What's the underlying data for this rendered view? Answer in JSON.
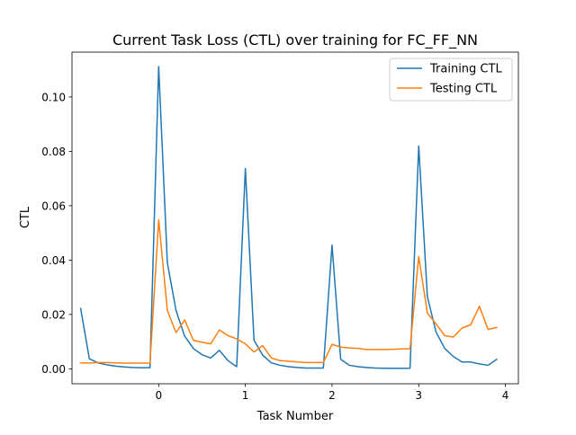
{
  "chart_data": {
    "type": "line",
    "title": "Current Task Loss (CTL) over training for FC_FF_NN",
    "xlabel": "Task Number",
    "ylabel": "CTL",
    "xlim": [
      -1.0,
      4.15
    ],
    "ylim": [
      -0.0055,
      0.1165
    ],
    "xticks": [
      0,
      1,
      2,
      3,
      4
    ],
    "yticks": [
      0.0,
      0.02,
      0.04,
      0.06,
      0.08,
      0.1
    ],
    "ytick_labels": [
      "0.00",
      "0.02",
      "0.04",
      "0.06",
      "0.08",
      "0.10"
    ],
    "grid": false,
    "legend_position": "top-right",
    "series": [
      {
        "name": "Training CTL",
        "color": "#1f77b4",
        "x": [
          -0.9,
          -0.8,
          -0.7,
          -0.6,
          -0.5,
          -0.4,
          -0.3,
          -0.2,
          -0.1,
          0.0,
          0.1,
          0.2,
          0.3,
          0.4,
          0.5,
          0.6,
          0.7,
          0.8,
          0.9,
          1.0,
          1.1,
          1.2,
          1.3,
          1.4,
          1.5,
          1.6,
          1.7,
          1.8,
          1.9,
          2.0,
          2.1,
          2.2,
          2.3,
          2.4,
          2.5,
          2.6,
          2.7,
          2.8,
          2.9,
          3.0,
          3.1,
          3.2,
          3.3,
          3.4,
          3.5,
          3.6,
          3.7,
          3.8,
          3.9
        ],
        "y": [
          0.0222,
          0.0037,
          0.0022,
          0.0015,
          0.001,
          0.0007,
          0.0005,
          0.0004,
          0.0004,
          0.1112,
          0.039,
          0.0215,
          0.012,
          0.0075,
          0.0052,
          0.004,
          0.0068,
          0.003,
          0.0008,
          0.0737,
          0.0105,
          0.005,
          0.0022,
          0.0013,
          0.0008,
          0.0005,
          0.0003,
          0.0003,
          0.0003,
          0.0455,
          0.0035,
          0.0013,
          0.0008,
          0.0005,
          0.0003,
          0.0002,
          0.0002,
          0.0002,
          0.0002,
          0.082,
          0.0265,
          0.0135,
          0.0075,
          0.0045,
          0.0025,
          0.0025,
          0.0018,
          0.0013,
          0.0035
        ]
      },
      {
        "name": "Testing CTL",
        "color": "#ff7f0e",
        "x": [
          -0.9,
          -0.8,
          -0.7,
          -0.6,
          -0.5,
          -0.4,
          -0.3,
          -0.2,
          -0.1,
          0.0,
          0.1,
          0.2,
          0.3,
          0.4,
          0.5,
          0.6,
          0.7,
          0.8,
          0.9,
          1.0,
          1.1,
          1.2,
          1.3,
          1.4,
          1.5,
          1.6,
          1.7,
          1.8,
          1.9,
          2.0,
          2.1,
          2.2,
          2.3,
          2.4,
          2.5,
          2.6,
          2.7,
          2.8,
          2.9,
          3.0,
          3.1,
          3.2,
          3.3,
          3.4,
          3.5,
          3.6,
          3.7,
          3.8,
          3.9
        ],
        "y": [
          0.0022,
          0.0021,
          0.0023,
          0.0023,
          0.0022,
          0.0021,
          0.0021,
          0.0021,
          0.0021,
          0.0548,
          0.0215,
          0.0133,
          0.018,
          0.0105,
          0.0098,
          0.0092,
          0.0143,
          0.0122,
          0.011,
          0.0092,
          0.0062,
          0.0085,
          0.004,
          0.003,
          0.0028,
          0.0025,
          0.0023,
          0.0023,
          0.0023,
          0.009,
          0.008,
          0.0077,
          0.0075,
          0.0071,
          0.0071,
          0.0071,
          0.0072,
          0.0073,
          0.0074,
          0.0413,
          0.0205,
          0.0165,
          0.0122,
          0.0117,
          0.015,
          0.0162,
          0.023,
          0.0145,
          0.0152
        ]
      }
    ]
  }
}
